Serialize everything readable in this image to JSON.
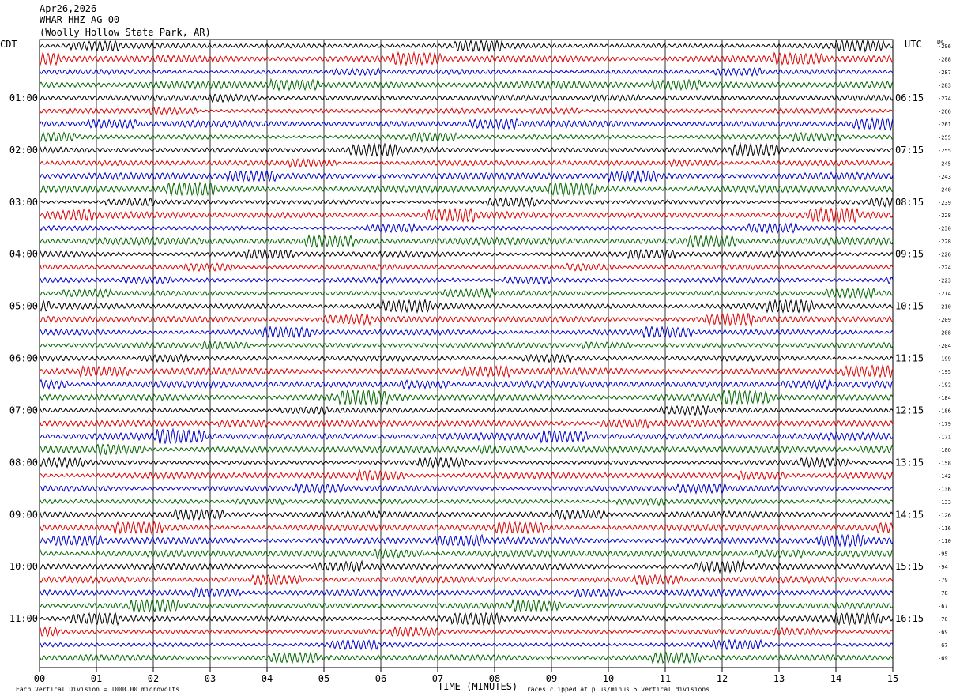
{
  "header": {
    "date": "Apr26,2026",
    "station": "WHAR HHZ AG 00",
    "location": "(Woolly Hollow State Park, AR)"
  },
  "left_tz": "CDT",
  "right_tz": "UTC",
  "dc_label": "DC",
  "xlabel": "TIME (MINUTES)",
  "footer_left": "Each Vertical Division = 1000.00 microvolts",
  "footer_right": "Traces clipped at plus/minus 5 vertical divisions",
  "colors": {
    "trace_cycle": [
      "#000000",
      "#dd0000",
      "#0000cc",
      "#006600"
    ],
    "grid": "#000000"
  },
  "chart_data": {
    "type": "line",
    "title": "",
    "xlabel": "TIME (MINUTES)",
    "xlim": [
      0,
      15
    ],
    "x_ticks": [
      "00",
      "01",
      "02",
      "03",
      "04",
      "05",
      "06",
      "07",
      "08",
      "09",
      "10",
      "11",
      "12",
      "13",
      "14",
      "15"
    ],
    "traces_per_hour": 4,
    "left_hour_labels": [
      "01:00",
      "02:00",
      "03:00",
      "04:00",
      "05:00",
      "06:00",
      "07:00",
      "08:00",
      "09:00",
      "10:00",
      "11:00"
    ],
    "right_hour_labels": [
      "06:15",
      "07:15",
      "08:15",
      "09:15",
      "10:15",
      "11:15",
      "12:15",
      "13:15",
      "14:15",
      "15:15",
      "16:15"
    ],
    "dc_offsets": [
      -296,
      -288,
      -287,
      -283,
      -274,
      -266,
      -261,
      -255,
      -255,
      -245,
      -243,
      -240,
      -239,
      -228,
      -230,
      -228,
      -226,
      -224,
      -223,
      -214,
      -210,
      -209,
      -208,
      -204,
      -199,
      -195,
      -192,
      -184,
      -186,
      -179,
      -171,
      -160,
      -158,
      -142,
      -136,
      -133,
      -126,
      -116,
      -110,
      -95,
      -94,
      -79,
      -78,
      -67,
      -70,
      -69,
      -67,
      -69
    ],
    "grid": true
  }
}
